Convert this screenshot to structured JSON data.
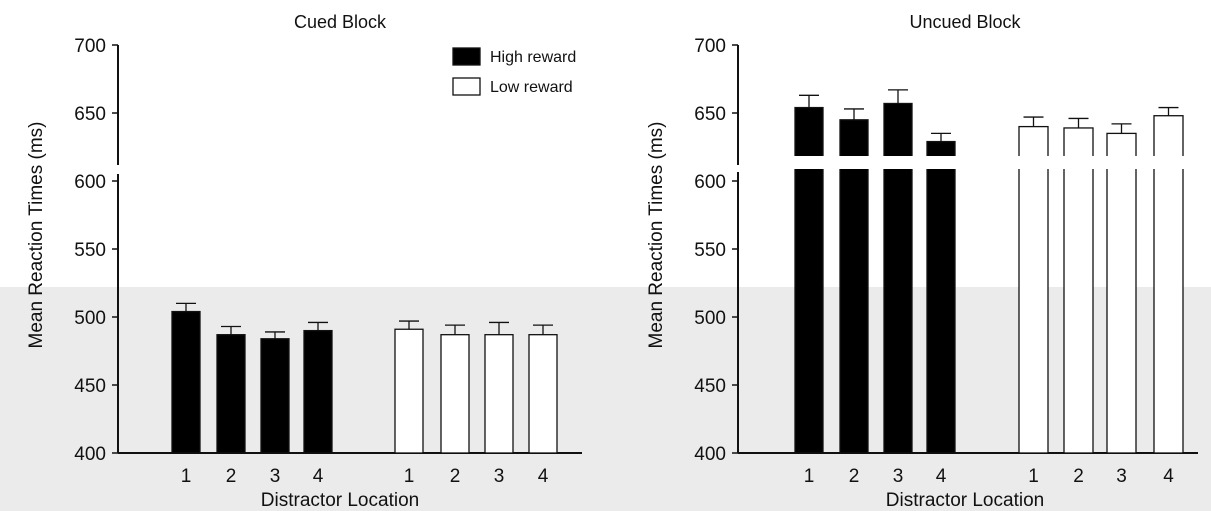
{
  "chart_data": [
    {
      "type": "bar",
      "title": "Cued Block",
      "xlabel": "Distractor Location",
      "ylabel": "Mean Reaction Times (ms)",
      "ylim": [
        400,
        700
      ],
      "yticks": [
        "400",
        "450",
        "500",
        "550",
        "600",
        "650",
        "700"
      ],
      "categories": [
        "1",
        "2",
        "3",
        "4"
      ],
      "legend_position": "top-right",
      "series": [
        {
          "name": "High reward",
          "fill": "#000000",
          "values": [
            504,
            487,
            484,
            490
          ],
          "errors": [
            6,
            6,
            5,
            6
          ]
        },
        {
          "name": "Low reward",
          "fill": "#ffffff",
          "values": [
            491,
            487,
            487,
            487
          ],
          "errors": [
            6,
            7,
            9,
            7
          ]
        }
      ]
    },
    {
      "type": "bar",
      "title": "Uncued Block",
      "xlabel": "Distractor Location",
      "ylabel": "Mean Reaction Times (ms)",
      "ylim": [
        400,
        700
      ],
      "yticks": [
        "400",
        "450",
        "500",
        "550",
        "600",
        "650",
        "700"
      ],
      "categories": [
        "1",
        "2",
        "3",
        "4"
      ],
      "series": [
        {
          "name": "High reward",
          "fill": "#000000",
          "values": [
            654,
            645,
            657,
            629
          ],
          "errors": [
            9,
            8,
            10,
            6
          ]
        },
        {
          "name": "Low reward",
          "fill": "#ffffff",
          "values": [
            640,
            639,
            635,
            648
          ],
          "errors": [
            7,
            7,
            7,
            6
          ]
        }
      ]
    }
  ]
}
